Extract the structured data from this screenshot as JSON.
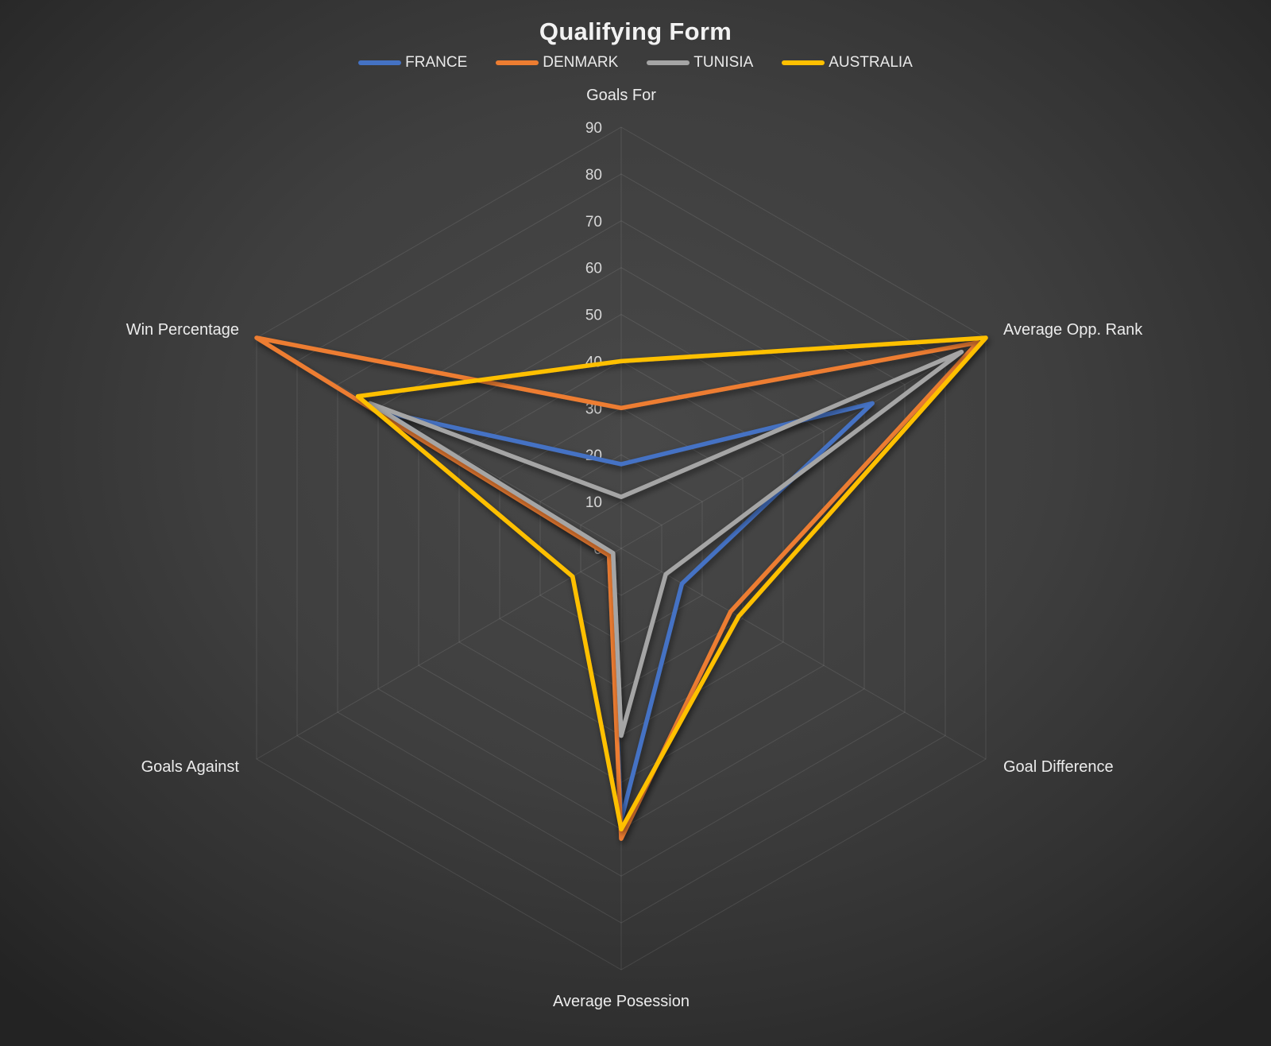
{
  "chart_data": {
    "type": "radar",
    "title": "Qualifying Form",
    "categories": [
      "Goals For",
      "Average Opp. Rank",
      "Goal Difference",
      "Average Posession",
      "Goals Against",
      "Win Percentage"
    ],
    "series": [
      {
        "name": "FRANCE",
        "color": "#4472C4",
        "values": [
          18,
          62,
          15,
          58,
          3,
          58
        ]
      },
      {
        "name": "DENMARK",
        "color": "#ED7D31",
        "values": [
          30,
          88,
          27,
          62,
          3,
          90
        ]
      },
      {
        "name": "TUNISIA",
        "color": "#A5A5A5",
        "values": [
          11,
          84,
          11,
          40,
          2,
          62
        ]
      },
      {
        "name": "AUSTRALIA",
        "color": "#FFC000",
        "values": [
          40,
          90,
          29,
          60,
          12,
          65
        ]
      }
    ],
    "radial_axis": {
      "min": 0,
      "max": 90,
      "step": 10,
      "tick_labels": [
        "0",
        "10",
        "20",
        "30",
        "40",
        "50",
        "60",
        "70",
        "80",
        "90"
      ]
    },
    "grid": true,
    "legend_position": "top",
    "background_color": "#3a3a3a"
  }
}
